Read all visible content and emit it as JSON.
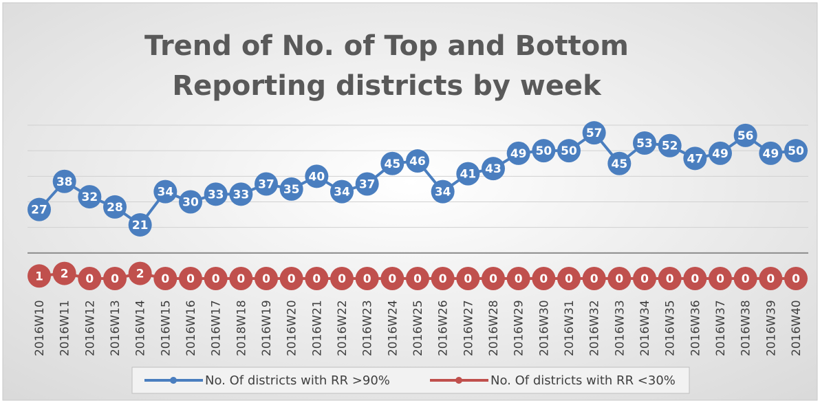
{
  "chart_data": {
    "type": "line",
    "title": "Trend of No. of Top and Bottom Reporting districts by week",
    "categories": [
      "2016W10",
      "2016W11",
      "2016W12",
      "2016W13",
      "2016W14",
      "2016W15",
      "2016W16",
      "2016W17",
      "2018W18",
      "2016W19",
      "2016W20",
      "2016W21",
      "2016W22",
      "2016W23",
      "2016W24",
      "2016W25",
      "2016W26",
      "2016W27",
      "2016W28",
      "2016W29",
      "2016W30",
      "2016W31",
      "2016W32",
      "2016W33",
      "2016W34",
      "2016W35",
      "2016W36",
      "2016W37",
      "2016W38",
      "2016W39",
      "2016W40"
    ],
    "series": [
      {
        "name": "No. Of districts with RR >90%",
        "color": "#4a7ebf",
        "values": [
          27,
          38,
          32,
          28,
          21,
          34,
          30,
          33,
          33,
          37,
          35,
          40,
          34,
          37,
          45,
          46,
          34,
          41,
          43,
          49,
          50,
          50,
          57,
          45,
          53,
          52,
          47,
          49,
          56,
          49,
          50
        ]
      },
      {
        "name": "No. Of districts with RR <30%",
        "color": "#c0504d",
        "values": [
          1,
          2,
          0,
          0,
          2,
          0,
          0,
          0,
          0,
          0,
          0,
          0,
          0,
          0,
          0,
          0,
          0,
          0,
          0,
          0,
          0,
          0,
          0,
          0,
          0,
          0,
          0,
          0,
          0,
          0,
          0
        ]
      }
    ],
    "ylim": [
      0,
      60
    ],
    "yticks": [
      0,
      10,
      20,
      30,
      40,
      50,
      60
    ],
    "grid": true
  }
}
